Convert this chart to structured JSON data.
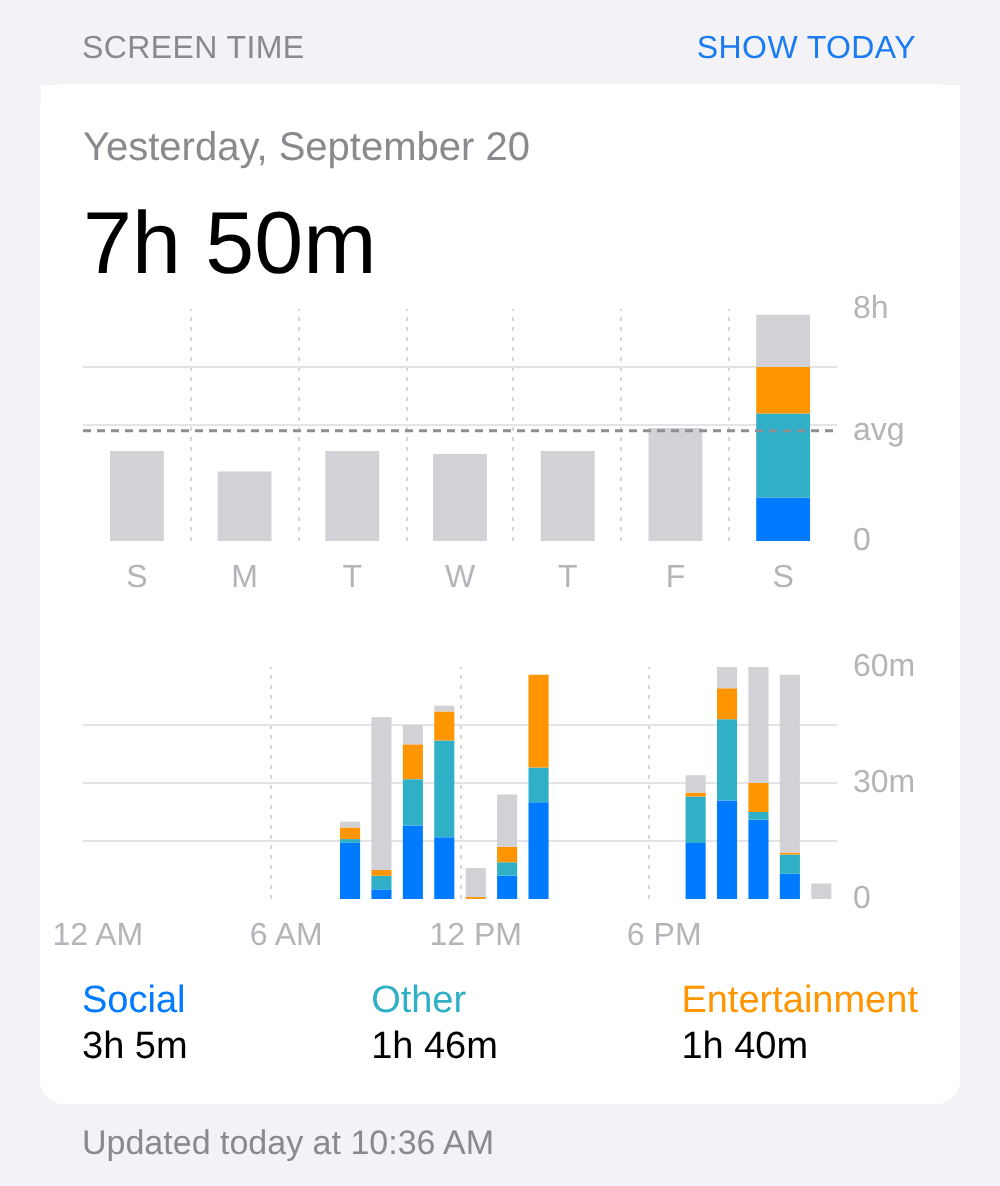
{
  "chart_data": [
    {
      "type": "bar",
      "title": "Yesterday, September 20",
      "subtitle": "7h 50m",
      "annotations": [
        "SCREEN TIME",
        "SHOW TODAY"
      ],
      "categories": [
        "S",
        "M",
        "T",
        "W",
        "T",
        "F",
        "S"
      ],
      "stacked": true,
      "series": [
        {
          "color": "#007aff",
          "values": [
            null,
            null,
            null,
            null,
            null,
            null,
            1.5
          ]
        },
        {
          "color": "#30b0c7",
          "values": [
            null,
            null,
            null,
            null,
            null,
            null,
            2.9
          ]
        },
        {
          "color": "#ff9500",
          "values": [
            null,
            null,
            null,
            null,
            null,
            null,
            1.6
          ]
        },
        {
          "color": "#d1d1d6",
          "values": [
            3.1,
            2.4,
            3.1,
            3.0,
            3.1,
            3.9,
            1.8
          ]
        }
      ],
      "ylim": [
        0,
        8
      ],
      "yticks": [
        0,
        {
          "value": 4,
          "label": null
        },
        {
          "value": 6,
          "label": null
        },
        {
          "value": 8,
          "label": "8h"
        }
      ],
      "ref_lines": [
        {
          "axis": "y",
          "value": 3.8,
          "label": "avg",
          "line_style": "dashed",
          "color": "#8e8e93"
        }
      ],
      "grid": true
    },
    {
      "type": "bar",
      "categories": [
        "12 AM",
        null,
        null,
        null,
        null,
        null,
        "6 AM",
        null,
        null,
        null,
        null,
        null,
        "12 PM",
        null,
        null,
        null,
        null,
        null,
        "6 PM",
        null,
        null,
        null,
        null,
        null
      ],
      "ylim": [
        0,
        60
      ],
      "yticks": [
        0,
        {
          "value": 15,
          "label": null
        },
        {
          "value": 30,
          "label": "30m"
        },
        {
          "value": 45,
          "label": null
        },
        {
          "value": 60,
          "label": "60m"
        }
      ],
      "stacked": true,
      "grid": true,
      "legend": "bottom",
      "series": [
        {
          "name": "Social",
          "color": "#007aff",
          "values": [
            null,
            null,
            null,
            null,
            null,
            null,
            null,
            null,
            14.5,
            2.5,
            19,
            16,
            null,
            6,
            25,
            null,
            null,
            null,
            null,
            14.5,
            25.5,
            20.5,
            6.5,
            null
          ]
        },
        {
          "name": "Other",
          "color": "#30b0c7",
          "values": [
            null,
            null,
            null,
            null,
            null,
            null,
            null,
            null,
            1,
            3.5,
            12,
            25,
            null,
            3.5,
            9,
            null,
            null,
            null,
            null,
            12,
            21,
            2,
            5,
            null
          ]
        },
        {
          "name": "Entertainment",
          "color": "#ff9500",
          "values": [
            null,
            null,
            null,
            null,
            null,
            null,
            null,
            null,
            3,
            1.5,
            9,
            7.5,
            0.5,
            4,
            24,
            null,
            null,
            null,
            null,
            1,
            8,
            7.5,
            0.5,
            null
          ]
        },
        {
          "color": "#d1d1d6",
          "values": [
            null,
            null,
            null,
            null,
            null,
            null,
            null,
            null,
            1.5,
            39.5,
            5,
            1.5,
            7.5,
            13.5,
            null,
            null,
            null,
            null,
            null,
            4.5,
            5.5,
            30,
            46,
            4
          ]
        }
      ],
      "annotations": [
        "3h 5m",
        "1h 46m",
        "1h 40m",
        "Updated today at 10:36 AM"
      ]
    }
  ]
}
